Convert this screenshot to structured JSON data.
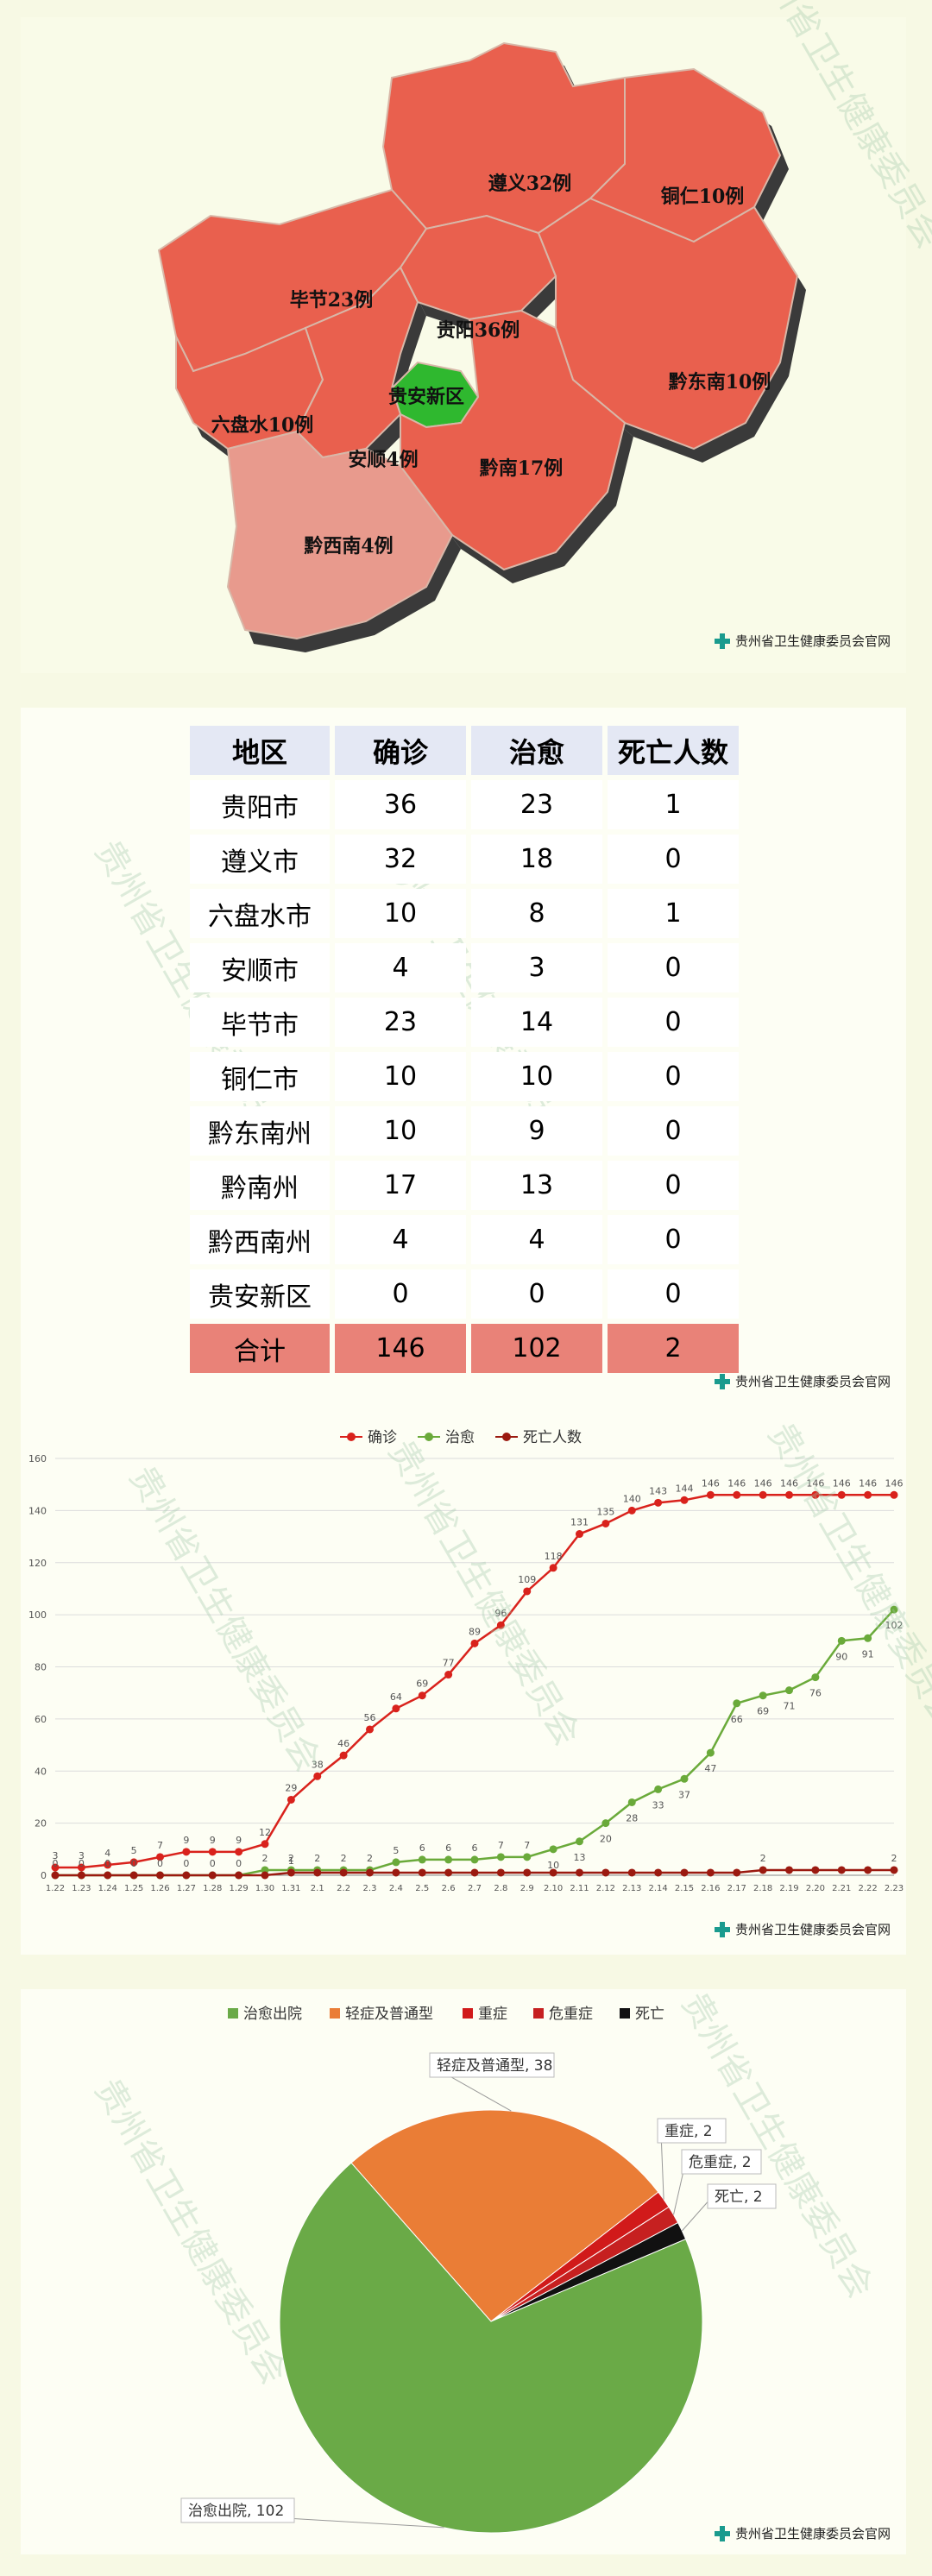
{
  "map": {
    "regions": [
      {
        "label": "遵义32例",
        "color": "#e9604e"
      },
      {
        "label": "铜仁10例",
        "color": "#e9604e"
      },
      {
        "label": "毕节23例",
        "color": "#e9604e"
      },
      {
        "label": "贵阳36例",
        "color": "#e9604e"
      },
      {
        "label": "贵安新区",
        "color": "#2fb82f"
      },
      {
        "label": "黔东南10例",
        "color": "#e9604e"
      },
      {
        "label": "六盘水10例",
        "color": "#e9604e"
      },
      {
        "label": "安顺4例",
        "color": "#e9604e"
      },
      {
        "label": "黔南17例",
        "color": "#e9604e"
      },
      {
        "label": "黔西南4例",
        "color": "#e89a8d"
      }
    ],
    "credit": "贵州省卫生健康委员会官网"
  },
  "table": {
    "headers": [
      "地区",
      "确诊",
      "治愈",
      "死亡人数"
    ],
    "rows": [
      [
        "贵阳市",
        "36",
        "23",
        "1"
      ],
      [
        "遵义市",
        "32",
        "18",
        "0"
      ],
      [
        "六盘水市",
        "10",
        "8",
        "1"
      ],
      [
        "安顺市",
        "4",
        "3",
        "0"
      ],
      [
        "毕节市",
        "23",
        "14",
        "0"
      ],
      [
        "铜仁市",
        "10",
        "10",
        "0"
      ],
      [
        "黔东南州",
        "10",
        "9",
        "0"
      ],
      [
        "黔南州",
        "17",
        "13",
        "0"
      ],
      [
        "黔西南州",
        "4",
        "4",
        "0"
      ],
      [
        "贵安新区",
        "0",
        "0",
        "0"
      ]
    ],
    "total": [
      "合计",
      "146",
      "102",
      "2"
    ],
    "credit": "贵州省卫生健康委员会官网"
  },
  "chart_data": [
    {
      "type": "line",
      "x": [
        "1.22",
        "1.23",
        "1.24",
        "1.25",
        "1.26",
        "1.27",
        "1.28",
        "1.29",
        "1.30",
        "1.31",
        "2.1",
        "2.2",
        "2.3",
        "2.4",
        "2.5",
        "2.6",
        "2.7",
        "2.8",
        "2.9",
        "2.10",
        "2.11",
        "2.12",
        "2.13",
        "2.14",
        "2.15",
        "2.16",
        "2.17",
        "2.18",
        "2.19",
        "2.20",
        "2.21",
        "2.22",
        "2.23"
      ],
      "series": [
        {
          "name": "确诊",
          "color": "#d9221c",
          "values": [
            3,
            3,
            4,
            5,
            7,
            9,
            9,
            9,
            12,
            29,
            38,
            46,
            56,
            64,
            69,
            77,
            89,
            96,
            109,
            118,
            131,
            135,
            140,
            143,
            144,
            146,
            146,
            146,
            146,
            146,
            146,
            146,
            146
          ]
        },
        {
          "name": "治愈",
          "color": "#6aaa3a",
          "values": [
            0,
            0,
            0,
            0,
            0,
            0,
            0,
            0,
            2,
            2,
            2,
            2,
            2,
            5,
            6,
            6,
            6,
            7,
            7,
            10,
            13,
            20,
            28,
            33,
            37,
            47,
            66,
            69,
            71,
            76,
            90,
            91,
            102
          ]
        },
        {
          "name": "死亡人数",
          "color": "#9b1a10",
          "values": [
            0,
            0,
            0,
            0,
            0,
            0,
            0,
            0,
            0,
            1,
            1,
            1,
            1,
            1,
            1,
            1,
            1,
            1,
            1,
            1,
            1,
            1,
            1,
            1,
            1,
            1,
            1,
            2,
            2,
            2,
            2,
            2,
            2
          ]
        }
      ],
      "ylim": [
        0,
        160
      ],
      "yticks": [
        "0",
        "20",
        "40",
        "60",
        "80",
        "100",
        "120",
        "140",
        "160"
      ],
      "legend": "top",
      "grid": true,
      "credit": "贵州省卫生健康委员会官网"
    },
    {
      "type": "pie",
      "slices": [
        {
          "name": "治愈出院",
          "value": 102,
          "color": "#6aaa47",
          "label": "治愈出院, 102"
        },
        {
          "name": "轻症及普通型",
          "value": 38,
          "color": "#ea7d36",
          "label": "轻症及普通型, 38"
        },
        {
          "name": "重症",
          "value": 2,
          "color": "#d11a1a",
          "label": "重症, 2"
        },
        {
          "name": "危重症",
          "value": 2,
          "color": "#c62020",
          "label": "危重症, 2"
        },
        {
          "name": "死亡",
          "value": 2,
          "color": "#111111",
          "label": "死亡, 2"
        }
      ],
      "legend": "top",
      "credit": "贵州省卫生健康委员会官网"
    }
  ]
}
